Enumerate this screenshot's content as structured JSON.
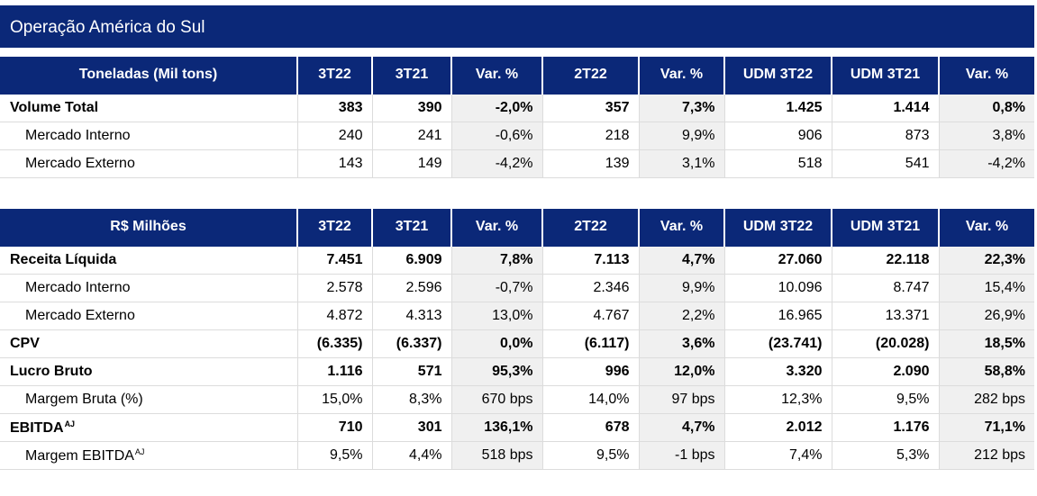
{
  "title": "Operação América do Sul",
  "table1": {
    "headers": [
      "Toneladas (Mil tons)",
      "3T22",
      "3T21",
      "Var. %",
      "2T22",
      "Var. %",
      "UDM 3T22",
      "UDM 3T21",
      "Var. %"
    ],
    "rows": [
      {
        "cells": [
          "Volume Total",
          "383",
          "390",
          "-2,0%",
          "357",
          "7,3%",
          "1.425",
          "1.414",
          "0,8%"
        ]
      },
      {
        "cells": [
          "Mercado Interno",
          "240",
          "241",
          "-0,6%",
          "218",
          "9,9%",
          "906",
          "873",
          "3,8%"
        ]
      },
      {
        "cells": [
          "Mercado Externo",
          "143",
          "149",
          "-4,2%",
          "139",
          "3,1%",
          "518",
          "541",
          "-4,2%"
        ]
      }
    ]
  },
  "table2": {
    "headers": [
      "R$ Milhões",
      "3T22",
      "3T21",
      "Var. %",
      "2T22",
      "Var. %",
      "UDM 3T22",
      "UDM 3T21",
      "Var. %"
    ],
    "rows": [
      {
        "cells": [
          "Receita Líquida",
          "7.451",
          "6.909",
          "7,8%",
          "7.113",
          "4,7%",
          "27.060",
          "22.118",
          "22,3%"
        ]
      },
      {
        "cells": [
          "Mercado Interno",
          "2.578",
          "2.596",
          "-0,7%",
          "2.346",
          "9,9%",
          "10.096",
          "8.747",
          "15,4%"
        ]
      },
      {
        "cells": [
          "Mercado Externo",
          "4.872",
          "4.313",
          "13,0%",
          "4.767",
          "2,2%",
          "16.965",
          "13.371",
          "26,9%"
        ]
      },
      {
        "cells": [
          "CPV",
          "(6.335)",
          "(6.337)",
          "0,0%",
          "(6.117)",
          "3,6%",
          "(23.741)",
          "(20.028)",
          "18,5%"
        ]
      },
      {
        "cells": [
          "Lucro Bruto",
          "1.116",
          "571",
          "95,3%",
          "996",
          "12,0%",
          "3.320",
          "2.090",
          "58,8%"
        ]
      },
      {
        "cells": [
          "Margem Bruta (%)",
          "15,0%",
          "8,3%",
          "670 bps",
          "14,0%",
          "97 bps",
          "12,3%",
          "9,5%",
          "282 bps"
        ]
      },
      {
        "cells": [
          "EBITDA",
          "710",
          "301",
          "136,1%",
          "678",
          "4,7%",
          "2.012",
          "1.176",
          "71,1%"
        ],
        "sup": "AJ"
      },
      {
        "cells": [
          "Margem EBITDA",
          "9,5%",
          "4,4%",
          "518 bps",
          "9,5%",
          "-1 bps",
          "7,4%",
          "5,3%",
          "212 bps"
        ],
        "sup": "AJ"
      }
    ]
  }
}
